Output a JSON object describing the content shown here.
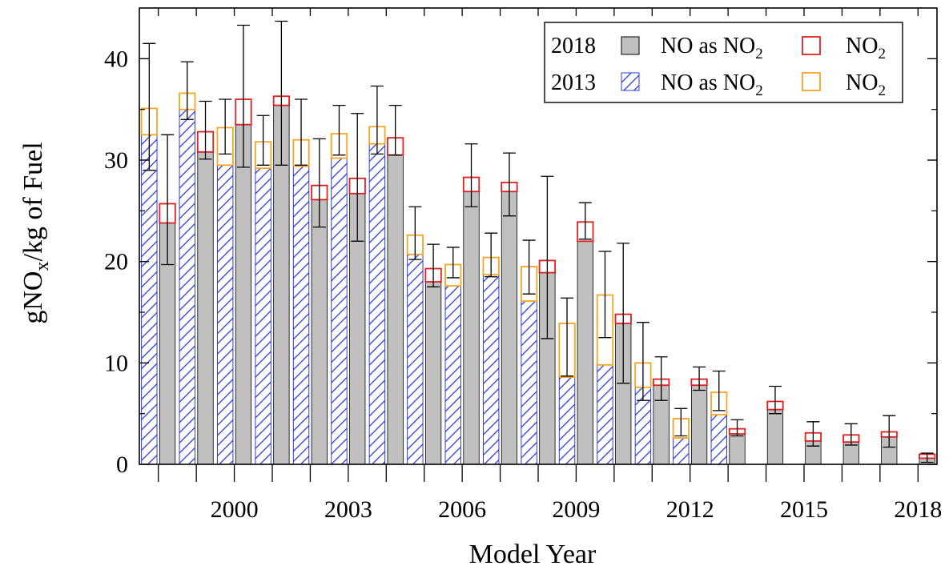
{
  "chart_data": {
    "type": "bar",
    "xlabel": "Model Year",
    "ylabel_parts": [
      "gNO",
      "x",
      "/kg of Fuel"
    ],
    "ylim": [
      0,
      45
    ],
    "yticks": [
      0,
      10,
      20,
      30,
      40
    ],
    "xticks": [
      2000,
      2003,
      2006,
      2009,
      2012,
      2015,
      2018
    ],
    "xlim": [
      1997.5,
      2018.5
    ],
    "grid": false,
    "legend_position": "top-right",
    "legend": {
      "rows": [
        {
          "year": "2018",
          "no_label": "NO as NO",
          "no_sub": "2",
          "no2_label": "NO",
          "no2_sub": "2"
        },
        {
          "year": "2013",
          "no_label": "NO as NO",
          "no_sub": "2",
          "no2_label": "NO",
          "no2_sub": "2"
        }
      ]
    },
    "series": [
      {
        "campaign": "2013",
        "fill_color": "#2f3bd6",
        "no2_color": "#f5a623",
        "points": [
          {
            "year": 1998,
            "no": 32.5,
            "no2": 2.6,
            "err_lo": 29.0,
            "err_hi": 41.5
          },
          {
            "year": 1999,
            "no": 35.0,
            "no2": 1.6,
            "err_lo": 34.0,
            "err_hi": 39.7
          },
          {
            "year": 2000,
            "no": 29.5,
            "no2": 3.7,
            "err_lo": 30.6,
            "err_hi": 36.0
          },
          {
            "year": 2001,
            "no": 29.2,
            "no2": 2.6,
            "err_lo": 29.5,
            "err_hi": 34.4
          },
          {
            "year": 2002,
            "no": 29.4,
            "no2": 2.6,
            "err_lo": 29.5,
            "err_hi": 36.0
          },
          {
            "year": 2003,
            "no": 30.2,
            "no2": 2.4,
            "err_lo": 30.5,
            "err_hi": 35.4
          },
          {
            "year": 2004,
            "no": 31.6,
            "no2": 1.7,
            "err_lo": 30.6,
            "err_hi": 37.3
          },
          {
            "year": 2005,
            "no": 20.7,
            "no2": 1.9,
            "err_lo": 20.2,
            "err_hi": 25.4
          },
          {
            "year": 2006,
            "no": 17.6,
            "no2": 2.1,
            "err_lo": 18.4,
            "err_hi": 21.4
          },
          {
            "year": 2007,
            "no": 18.7,
            "no2": 1.7,
            "err_lo": 18.5,
            "err_hi": 22.8
          },
          {
            "year": 2008,
            "no": 16.1,
            "no2": 3.4,
            "err_lo": 16.8,
            "err_hi": 22.1
          },
          {
            "year": 2009,
            "no": 8.6,
            "no2": 5.3,
            "err_lo": 8.7,
            "err_hi": 16.4
          },
          {
            "year": 2010,
            "no": 9.8,
            "no2": 6.9,
            "err_lo": 12.5,
            "err_hi": 21.0
          },
          {
            "year": 2011,
            "no": 7.6,
            "no2": 2.4,
            "err_lo": 6.3,
            "err_hi": 14.0
          },
          {
            "year": 2012,
            "no": 2.6,
            "no2": 1.9,
            "err_lo": 2.8,
            "err_hi": 5.5
          },
          {
            "year": 2013,
            "no": 4.9,
            "no2": 2.2,
            "err_lo": 5.3,
            "err_hi": 9.2
          }
        ]
      },
      {
        "campaign": "2018",
        "fill_color": "#c0c0c0",
        "no2_color": "#e02020",
        "points": [
          {
            "year": 1998,
            "no": 23.8,
            "no2": 1.9,
            "err_lo": 19.7,
            "err_hi": 32.5
          },
          {
            "year": 1999,
            "no": 30.8,
            "no2": 2.0,
            "err_lo": 30.1,
            "err_hi": 35.8
          },
          {
            "year": 2000,
            "no": 33.5,
            "no2": 2.5,
            "err_lo": 29.3,
            "err_hi": 43.3
          },
          {
            "year": 2001,
            "no": 35.4,
            "no2": 0.9,
            "err_lo": 29.5,
            "err_hi": 43.7
          },
          {
            "year": 2002,
            "no": 26.1,
            "no2": 1.4,
            "err_lo": 23.4,
            "err_hi": 32.1
          },
          {
            "year": 2003,
            "no": 26.7,
            "no2": 1.5,
            "err_lo": 22.0,
            "err_hi": 34.6
          },
          {
            "year": 2004,
            "no": 30.5,
            "no2": 1.7,
            "err_lo": 30.5,
            "err_hi": 35.4
          },
          {
            "year": 2005,
            "no": 18.0,
            "no2": 1.3,
            "err_lo": 17.5,
            "err_hi": 21.7
          },
          {
            "year": 2006,
            "no": 26.9,
            "no2": 1.4,
            "err_lo": 25.4,
            "err_hi": 31.6
          },
          {
            "year": 2007,
            "no": 26.9,
            "no2": 0.9,
            "err_lo": 24.5,
            "err_hi": 30.7
          },
          {
            "year": 2008,
            "no": 18.9,
            "no2": 1.2,
            "err_lo": 12.4,
            "err_hi": 28.4
          },
          {
            "year": 2009,
            "no": 22.0,
            "no2": 1.9,
            "err_lo": 22.2,
            "err_hi": 25.8
          },
          {
            "year": 2010,
            "no": 13.9,
            "no2": 0.9,
            "err_lo": 8.0,
            "err_hi": 21.8
          },
          {
            "year": 2011,
            "no": 7.8,
            "no2": 0.6,
            "err_lo": 6.3,
            "err_hi": 10.6
          },
          {
            "year": 2012,
            "no": 7.8,
            "no2": 0.6,
            "err_lo": 7.3,
            "err_hi": 9.6
          },
          {
            "year": 2013,
            "no": 3.0,
            "no2": 0.5,
            "err_lo": 2.8,
            "err_hi": 4.4
          },
          {
            "year": 2014,
            "no": 5.4,
            "no2": 0.8,
            "err_lo": 5.0,
            "err_hi": 7.7
          },
          {
            "year": 2015,
            "no": 2.3,
            "no2": 0.8,
            "err_lo": 1.8,
            "err_hi": 4.2
          },
          {
            "year": 2016,
            "no": 2.2,
            "no2": 0.7,
            "err_lo": 1.9,
            "err_hi": 4.0
          },
          {
            "year": 2017,
            "no": 2.7,
            "no2": 0.5,
            "err_lo": 1.7,
            "err_hi": 4.8
          },
          {
            "year": 2018,
            "no": 0.6,
            "no2": 0.4,
            "err_lo": 0.2,
            "err_hi": 1.1
          }
        ]
      }
    ]
  }
}
